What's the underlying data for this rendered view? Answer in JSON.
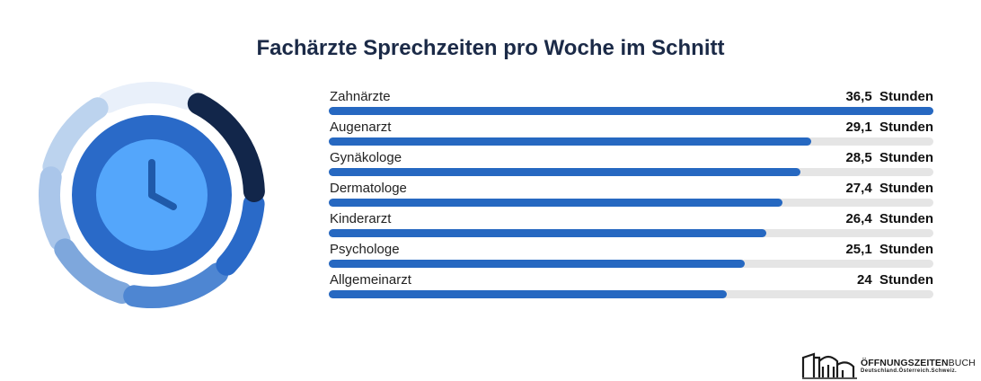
{
  "title": "Fachärzte Sprechzeiten pro Woche im Schnitt",
  "colors": {
    "bar": "#2668c1",
    "track": "#e5e5e5",
    "title": "#1b2a47",
    "clock_dark": "#12264a",
    "clock_ring": "#2a6ac8",
    "clock_face": "#54a6fb"
  },
  "chart_data": {
    "type": "bar",
    "orientation": "horizontal",
    "title": "Fachärzte Sprechzeiten pro Woche im Schnitt",
    "unit": "Stunden",
    "categories": [
      "Zahnärzte",
      "Augenarzt",
      "Gynäkologe",
      "Dermatologe",
      "Kinderarzt",
      "Psychologe",
      "Allgemeinarzt"
    ],
    "values": [
      36.5,
      29.1,
      28.5,
      27.4,
      26.4,
      25.1,
      24
    ],
    "value_labels": [
      "36,5  Stunden",
      "29,1  Stunden",
      "28,5  Stunden",
      "27,4  Stunden",
      "26,4  Stunden",
      "25,1  Stunden",
      "24  Stunden"
    ],
    "xlim": [
      0,
      36.5
    ],
    "grid": false,
    "legend": "none"
  },
  "illustration": {
    "icon": "clock-icon"
  },
  "logo": {
    "name_bold": "ÖFFNUNGSZEITEN",
    "name_light": "BUCH",
    "tagline": "Deutschland.Österreich.Schweiz."
  }
}
